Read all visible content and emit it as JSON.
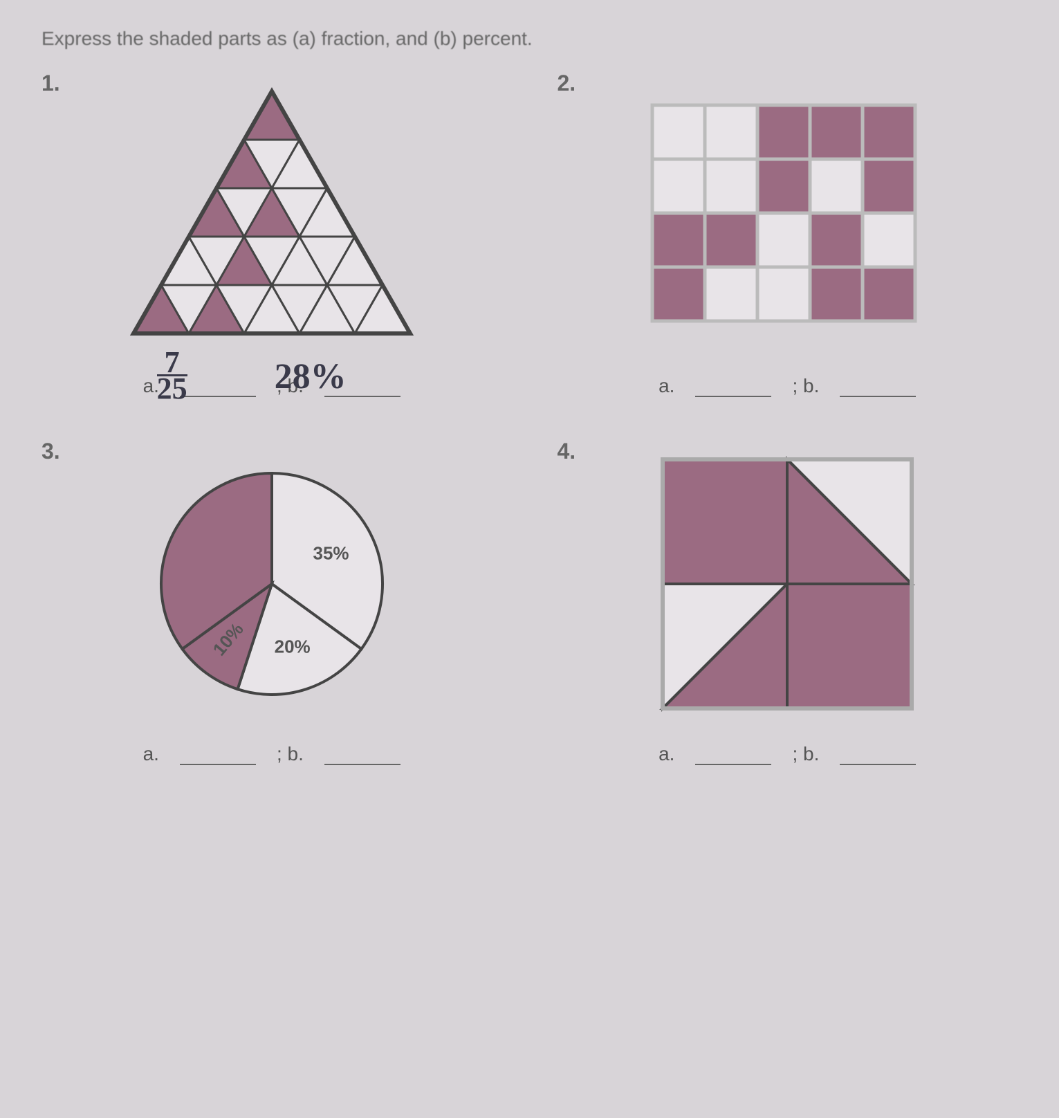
{
  "instruction": "Express the shaded parts as (a) fraction, and (b) percent.",
  "problems": {
    "p1": {
      "number": "1.",
      "answer_a_label": "a.",
      "answer_b_label": "; b.",
      "handwritten_fraction_num": "7",
      "handwritten_fraction_den": "25",
      "handwritten_percent": "28%",
      "triangle": {
        "rows": 5,
        "shaded_up": [
          [
            0,
            0
          ],
          [
            1,
            0
          ],
          [
            2,
            0
          ],
          [
            2,
            1
          ],
          [
            3,
            1
          ],
          [
            4,
            0
          ],
          [
            4,
            1
          ]
        ],
        "shaded_color": "#9b6b82",
        "unshaded_color": "#e8e4e8",
        "stroke": "#444"
      }
    },
    "p2": {
      "number": "2.",
      "answer_a_label": "a.",
      "answer_b_label": "; b.",
      "grid": {
        "rows": 4,
        "cols": 5,
        "shaded": [
          [
            0,
            2
          ],
          [
            0,
            3
          ],
          [
            0,
            4
          ],
          [
            1,
            2
          ],
          [
            1,
            4
          ],
          [
            2,
            0
          ],
          [
            2,
            1
          ],
          [
            2,
            3
          ],
          [
            3,
            0
          ],
          [
            3,
            3
          ],
          [
            3,
            4
          ]
        ],
        "shaded_color": "#9b6b82",
        "unshaded_color": "#e8e4e8",
        "stroke": "#bbb"
      }
    },
    "p3": {
      "number": "3.",
      "answer_a_label": "a.",
      "answer_b_label": "; b.",
      "pie": {
        "slices": [
          {
            "label": "35%",
            "start": -90,
            "end": 36,
            "shaded": false
          },
          {
            "label": "20%",
            "start": 36,
            "end": 108,
            "shaded": false
          },
          {
            "label": "10%",
            "start": 108,
            "end": 144,
            "shaded": true,
            "label_rotate": -50
          },
          {
            "label": "",
            "start": 144,
            "end": 270,
            "shaded": true
          }
        ],
        "shaded_color": "#9b6b82",
        "unshaded_color": "#e8e4e8",
        "stroke": "#444"
      }
    },
    "p4": {
      "number": "4.",
      "answer_a_label": "a.",
      "answer_b_label": "; b.",
      "square": {
        "shaded_color": "#9b6b82",
        "unshaded_color": "#e8e4e8",
        "stroke": "#444"
      }
    }
  }
}
